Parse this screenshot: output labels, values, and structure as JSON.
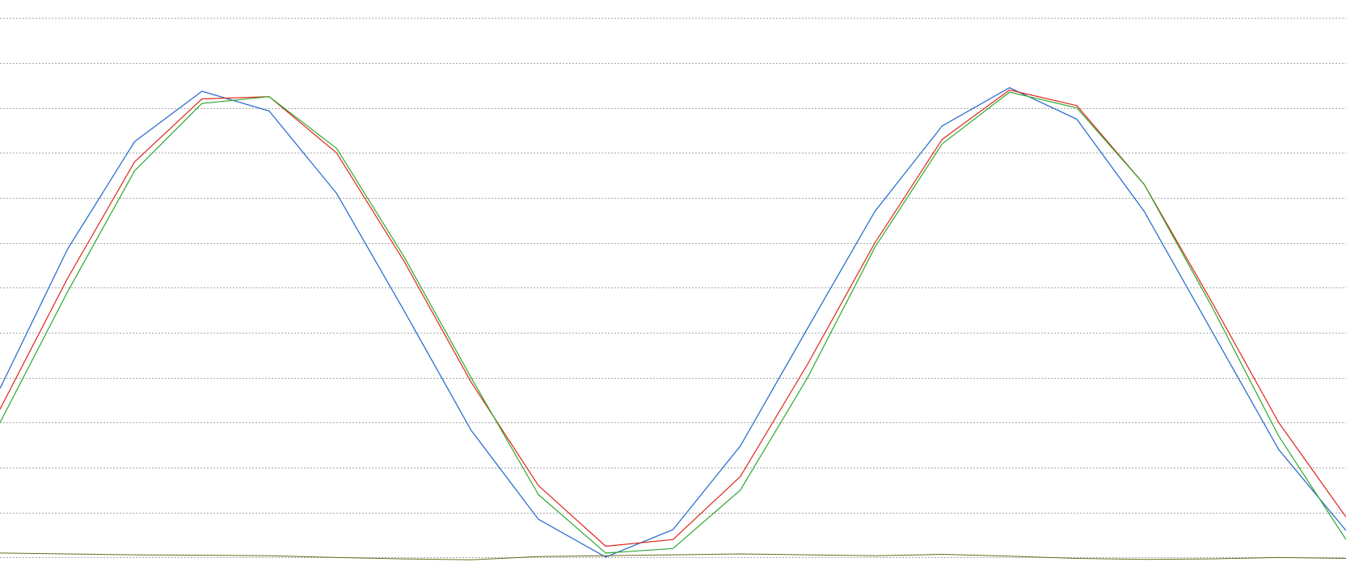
{
  "chart_data": {
    "type": "line",
    "title": "",
    "xlabel": "",
    "ylabel": "",
    "xlim": [
      0,
      1000
    ],
    "ylim": [
      -0.1,
      12.4
    ],
    "grid": true,
    "legend": "none",
    "gridlines_y": [
      0,
      1,
      2,
      3,
      4,
      5,
      6,
      7,
      8,
      9,
      10,
      11,
      12
    ],
    "x": [
      0,
      50,
      100,
      150,
      200,
      250,
      300,
      350,
      400,
      450,
      500,
      550,
      600,
      650,
      700,
      750,
      800,
      850,
      900,
      950,
      1000
    ],
    "series": [
      {
        "color": "#2f6fcf",
        "values": [
          3.76,
          6.85,
          9.25,
          10.37,
          9.93,
          8.1,
          5.5,
          2.83,
          0.85,
          0.01,
          0.62,
          2.48,
          5.1,
          7.7,
          9.6,
          10.45,
          9.75,
          7.7,
          5.05,
          2.4,
          0.6
        ]
      },
      {
        "color": "#e0261c",
        "values": [
          3.3,
          6.2,
          8.8,
          10.2,
          10.25,
          9.0,
          6.6,
          3.9,
          1.6,
          0.25,
          0.4,
          1.8,
          4.3,
          7.0,
          9.3,
          10.4,
          10.05,
          8.3,
          5.7,
          3.0,
          0.9
        ]
      },
      {
        "color": "#2ca82c",
        "values": [
          3.0,
          5.9,
          8.6,
          10.1,
          10.25,
          9.1,
          6.7,
          4.0,
          1.4,
          0.1,
          0.2,
          1.5,
          4.0,
          6.9,
          9.2,
          10.35,
          10.0,
          8.3,
          5.6,
          2.7,
          0.4
        ]
      },
      {
        "color": "#6b6b1a",
        "values": [
          0.1,
          0.08,
          0.06,
          0.05,
          0.04,
          0.0,
          -0.03,
          -0.05,
          0.02,
          0.04,
          0.06,
          0.08,
          0.06,
          0.04,
          0.07,
          0.03,
          -0.02,
          -0.04,
          -0.03,
          0.0,
          -0.02
        ]
      }
    ],
    "gridline_color": "#a8a8a8"
  }
}
